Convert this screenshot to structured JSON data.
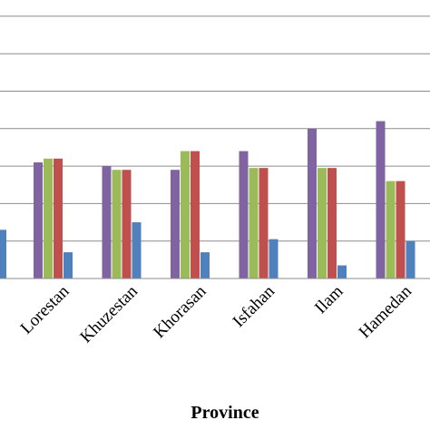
{
  "chart_data": {
    "type": "bar",
    "title": "",
    "xlabel": "Province",
    "ylabel": "",
    "categories": [
      "Lorestan",
      "Khuzestan",
      "Khorasan",
      "Isfahan",
      "Ilam",
      "Hamedan"
    ],
    "ylim": [
      0,
      7.5
    ],
    "grid": true,
    "series": [
      {
        "values": [
          3.1,
          3.0,
          2.9,
          3.4,
          4.0,
          4.2
        ],
        "color": "#8064A2"
      },
      {
        "values": [
          3.2,
          2.9,
          3.4,
          2.95,
          2.95,
          2.6
        ],
        "color": "#9BBB59"
      },
      {
        "values": [
          3.2,
          2.9,
          3.4,
          2.95,
          2.95,
          2.6
        ],
        "color": "#C0504D"
      },
      {
        "values": [
          0.7,
          1.5,
          0.7,
          1.05,
          0.35,
          1.0
        ],
        "color": "#4F81BD"
      }
    ],
    "partial_left_bar": {
      "value": 1.3,
      "color": "#4F81BD"
    }
  }
}
